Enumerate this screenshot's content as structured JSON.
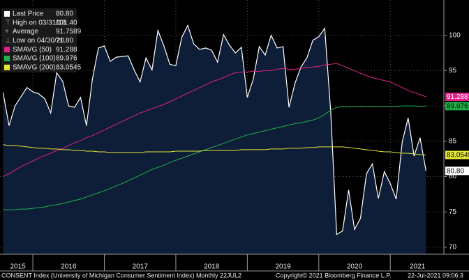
{
  "chart_data": {
    "type": "line",
    "x": [
      2015.583,
      2015.667,
      2015.75,
      2015.833,
      2015.917,
      2016,
      2016.083,
      2016.167,
      2016.25,
      2016.333,
      2016.417,
      2016.5,
      2016.583,
      2016.667,
      2016.75,
      2016.833,
      2016.917,
      2017,
      2017.083,
      2017.167,
      2017.25,
      2017.333,
      2017.417,
      2017.5,
      2017.583,
      2017.667,
      2017.75,
      2017.833,
      2017.917,
      2018,
      2018.083,
      2018.167,
      2018.25,
      2018.333,
      2018.417,
      2018.5,
      2018.583,
      2018.667,
      2018.75,
      2018.833,
      2018.917,
      2019,
      2019.083,
      2019.167,
      2019.25,
      2019.333,
      2019.417,
      2019.5,
      2019.583,
      2019.667,
      2019.75,
      2019.833,
      2019.917,
      2020,
      2020.083,
      2020.167,
      2020.25,
      2020.333,
      2020.417,
      2020.5,
      2020.583,
      2020.667,
      2020.75,
      2020.833,
      2020.917,
      2021,
      2021.083,
      2021.167,
      2021.25,
      2021.333,
      2021.417,
      2021.5
    ],
    "series": [
      {
        "name": "Last Price",
        "color": "#ffffff",
        "fill": "#0e1d38",
        "last_value_label": "80.80",
        "values": [
          91.9,
          87.2,
          90.0,
          91.3,
          92.6,
          92.0,
          91.7,
          91.0,
          89.0,
          94.7,
          93.5,
          90.0,
          89.8,
          91.2,
          87.2,
          93.8,
          98.2,
          98.5,
          96.3,
          96.9,
          97.0,
          97.1,
          95.1,
          93.4,
          96.8,
          95.1,
          100.7,
          98.5,
          95.9,
          95.7,
          99.7,
          101.4,
          98.8,
          98.0,
          98.2,
          97.9,
          96.2,
          100.1,
          98.6,
          97.5,
          98.3,
          91.2,
          93.8,
          98.4,
          97.2,
          100.0,
          98.2,
          98.4,
          89.8,
          93.2,
          95.5,
          96.8,
          99.3,
          99.8,
          101.0,
          89.1,
          71.8,
          72.3,
          78.1,
          72.5,
          74.1,
          80.4,
          81.8,
          76.9,
          80.7,
          79.0,
          76.8,
          84.9,
          88.3,
          82.9,
          85.5,
          80.8
        ]
      },
      {
        "name": "SMAVG (50)",
        "color": "#e0228a",
        "label_text": "#ffffff",
        "values": [
          80.0,
          80.4,
          80.9,
          81.4,
          81.8,
          82.2,
          82.6,
          83.0,
          83.3,
          83.7,
          84.0,
          84.4,
          84.8,
          85.1,
          85.5,
          85.8,
          86.2,
          86.6,
          87.0,
          87.4,
          87.8,
          88.2,
          88.6,
          89.0,
          89.3,
          89.6,
          89.9,
          90.2,
          90.6,
          91.0,
          91.4,
          91.8,
          92.2,
          92.6,
          93.0,
          93.4,
          93.7,
          94.0,
          94.4,
          94.7,
          94.8,
          94.8,
          94.9,
          94.9,
          95.0,
          95.0,
          95.2,
          95.3,
          95.2,
          95.2,
          95.3,
          95.4,
          95.5,
          95.6,
          95.8,
          95.9,
          96.0,
          95.7,
          95.3,
          95.0,
          94.6,
          94.3,
          94.0,
          93.8,
          93.6,
          93.4,
          93.0,
          92.6,
          92.2,
          91.9,
          91.6,
          91.288
        ]
      },
      {
        "name": "SMAVG (100)",
        "color": "#1fb24a",
        "label_text": "#000000",
        "values": [
          75.3,
          75.3,
          75.3,
          75.4,
          75.4,
          75.5,
          75.6,
          75.7,
          75.9,
          76.0,
          76.2,
          76.4,
          76.6,
          76.8,
          77.1,
          77.4,
          77.7,
          78.0,
          78.3,
          78.7,
          79.0,
          79.4,
          79.8,
          80.2,
          80.6,
          81.0,
          81.3,
          81.6,
          82.0,
          82.3,
          82.6,
          82.9,
          83.2,
          83.5,
          83.8,
          84.1,
          84.4,
          84.7,
          85.0,
          85.3,
          85.6,
          85.9,
          86.1,
          86.3,
          86.5,
          86.7,
          86.9,
          87.1,
          87.3,
          87.5,
          87.6,
          87.8,
          88.0,
          88.3,
          88.8,
          89.4,
          89.8,
          89.9,
          89.9,
          89.9,
          89.9,
          89.9,
          89.9,
          89.9,
          89.9,
          89.9,
          89.9,
          90.0,
          90.0,
          90.0,
          89.95,
          89.976
        ]
      },
      {
        "name": "SMAVG (200)",
        "color": "#e6e63a",
        "label_text": "#000000",
        "values": [
          84.5,
          84.4,
          84.4,
          84.3,
          84.2,
          84.1,
          84.0,
          84.0,
          83.9,
          83.9,
          83.8,
          83.8,
          83.7,
          83.7,
          83.6,
          83.6,
          83.5,
          83.5,
          83.4,
          83.4,
          83.4,
          83.4,
          83.4,
          83.4,
          83.5,
          83.5,
          83.5,
          83.5,
          83.5,
          83.6,
          83.6,
          83.6,
          83.6,
          83.6,
          83.7,
          83.7,
          83.7,
          83.7,
          83.7,
          83.7,
          83.8,
          83.8,
          83.8,
          83.8,
          83.8,
          83.9,
          83.9,
          83.9,
          84.0,
          84.0,
          84.0,
          84.1,
          84.1,
          84.2,
          84.2,
          84.2,
          84.2,
          84.2,
          84.1,
          84.0,
          83.9,
          83.8,
          83.7,
          83.6,
          83.5,
          83.5,
          83.4,
          83.3,
          83.3,
          83.2,
          83.1,
          83.0545
        ]
      }
    ],
    "stats": [
      {
        "label": "High on 03/31/18",
        "value": 101.4,
        "value_label": "101.40"
      },
      {
        "label": "Average",
        "value": 91.7589
      },
      {
        "label": "Low on 04/30/20",
        "value": 71.8,
        "value_label": "71.80"
      }
    ],
    "xlim": [
      2015.54,
      2021.75
    ],
    "xticks": [
      {
        "value": 2015.79,
        "label": "2015"
      },
      {
        "value": 2016.5,
        "label": "2016"
      },
      {
        "value": 2017.5,
        "label": "2017"
      },
      {
        "value": 2018.5,
        "label": "2018"
      },
      {
        "value": 2019.5,
        "label": "2019"
      },
      {
        "value": 2020.5,
        "label": "2020"
      },
      {
        "value": 2021.38,
        "label": "2021"
      }
    ],
    "xgrid": [
      2016,
      2017,
      2018,
      2019,
      2020,
      2021
    ],
    "ylim": [
      69,
      105
    ],
    "yticks": [
      70,
      75,
      80,
      85,
      90,
      95,
      100
    ],
    "grid": true,
    "footer": [
      "CONSENT Index (University of Michigan Consumer Sentiment Index)  Monthly 22JUL2",
      "Copyright© 2021 Bloomberg Finance L.P.",
      "22-Jul-2021 09:06:3"
    ]
  }
}
